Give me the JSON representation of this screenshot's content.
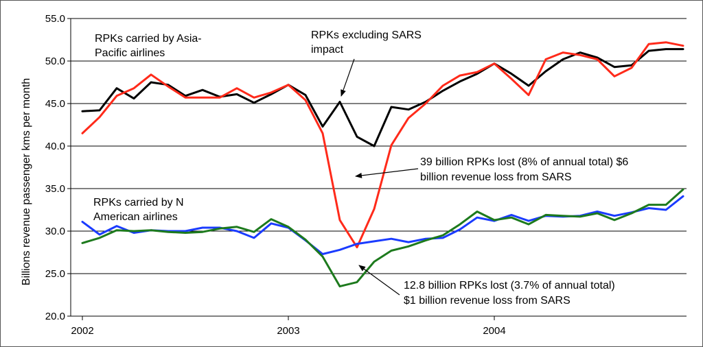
{
  "chart_data": {
    "type": "line",
    "title": "",
    "xlabel": "",
    "ylabel": "Billions revenue passenger kms per month",
    "ylim": [
      20,
      55
    ],
    "yticks": [
      "20.0",
      "25.0",
      "30.0",
      "35.0",
      "40.0",
      "45.0",
      "50.0",
      "55.0"
    ],
    "xticks": [
      "2002",
      "2003",
      "2004"
    ],
    "grid": "horizontal",
    "x": [
      "2002-01",
      "2002-02",
      "2002-03",
      "2002-04",
      "2002-05",
      "2002-06",
      "2002-07",
      "2002-08",
      "2002-09",
      "2002-10",
      "2002-11",
      "2002-12",
      "2003-01",
      "2003-02",
      "2003-03",
      "2003-04",
      "2003-05",
      "2003-06",
      "2003-07",
      "2003-08",
      "2003-09",
      "2003-10",
      "2003-11",
      "2003-12",
      "2004-01",
      "2004-02",
      "2004-03",
      "2004-04",
      "2004-05",
      "2004-06",
      "2004-07",
      "2004-08",
      "2004-09",
      "2004-10",
      "2004-11",
      "2004-12"
    ],
    "series": [
      {
        "name": "RPKs excluding SARS impact (Asia-Pacific)",
        "color": "#000000",
        "values": [
          44.1,
          44.2,
          46.8,
          45.6,
          47.5,
          47.2,
          45.9,
          46.6,
          45.8,
          46.1,
          45.1,
          46.1,
          47.2,
          46.0,
          42.3,
          45.2,
          41.1,
          40.0,
          44.6,
          44.3,
          45.2,
          46.5,
          47.6,
          48.5,
          49.7,
          48.5,
          47.1,
          48.8,
          50.2,
          51.0,
          50.4,
          49.3,
          49.5,
          51.2,
          51.4,
          51.4
        ]
      },
      {
        "name": "RPKs carried by Asia-Pacific airlines",
        "color": "#ff2a1a",
        "values": [
          41.5,
          43.4,
          45.9,
          46.8,
          48.4,
          47.0,
          45.7,
          45.7,
          45.7,
          46.8,
          45.7,
          46.3,
          47.2,
          45.4,
          41.5,
          31.3,
          28.1,
          32.6,
          40.1,
          43.3,
          45.0,
          47.1,
          48.3,
          48.7,
          49.7,
          47.9,
          46.0,
          50.2,
          51.0,
          50.7,
          50.2,
          48.2,
          49.2,
          52.0,
          52.2,
          51.8
        ]
      },
      {
        "name": "RPKs carried by N American airlines",
        "color": "#1a3bff",
        "values": [
          31.1,
          29.6,
          30.6,
          29.8,
          30.1,
          30.0,
          30.0,
          30.4,
          30.4,
          30.0,
          29.2,
          30.9,
          30.4,
          28.9,
          27.3,
          27.8,
          28.5,
          28.8,
          29.1,
          28.7,
          29.1,
          29.2,
          30.2,
          31.6,
          31.2,
          31.9,
          31.2,
          31.8,
          31.7,
          31.8,
          32.3,
          31.8,
          32.2,
          32.7,
          32.5,
          34.1
        ]
      },
      {
        "name": "RPKs excluding SARS impact (N America)",
        "color": "#1d7a1d",
        "values": [
          28.6,
          29.2,
          30.1,
          30.0,
          30.1,
          29.9,
          29.8,
          29.9,
          30.3,
          30.5,
          29.9,
          31.4,
          30.5,
          29.0,
          27.0,
          23.5,
          24.0,
          26.4,
          27.7,
          28.2,
          28.9,
          29.5,
          30.8,
          32.3,
          31.3,
          31.6,
          30.8,
          31.9,
          31.8,
          31.7,
          32.1,
          31.3,
          32.1,
          33.1,
          33.1,
          34.9
        ]
      }
    ]
  },
  "annotations": {
    "asia_label": [
      "RPKs carried by Asia-",
      "Pacific airlines"
    ],
    "excl_label": [
      "RPKs excluding SARS",
      "impact"
    ],
    "na_label": [
      "RPKs carried by N",
      "American airlines"
    ],
    "loss_asia": [
      "39 billion RPKs lost (8% of annual total) $6",
      "billion revenue loss from SARS"
    ],
    "loss_na": [
      "12.8 billion RPKs lost (3.7% of annual total)",
      "$1 billion revenue loss from SARS"
    ]
  }
}
